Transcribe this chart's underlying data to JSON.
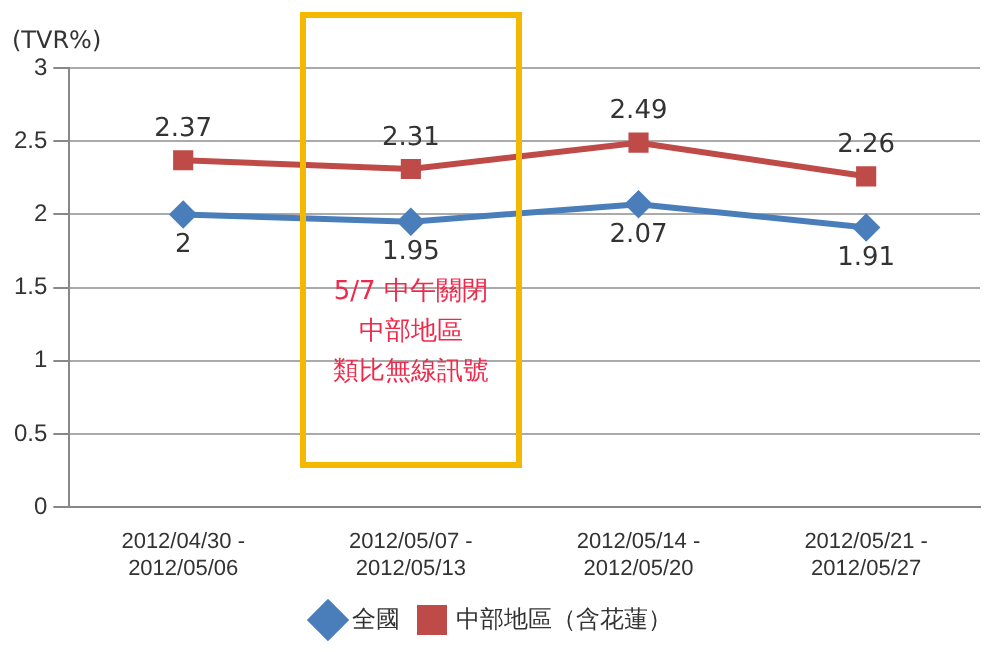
{
  "chart_data": {
    "type": "line",
    "ylabel": "(TVR%)",
    "categories": [
      "2012/04/30 - 2012/05/06",
      "2012/05/07 - 2012/05/13",
      "2012/05/14 - 2012/05/20",
      "2012/05/21 - 2012/05/27"
    ],
    "series": [
      {
        "name": "全國",
        "color": "#4a7ebb",
        "marker": "diamond",
        "values": [
          2,
          1.95,
          2.07,
          1.91
        ]
      },
      {
        "name": "中部地區（含花蓮）",
        "color": "#be4b48",
        "marker": "square",
        "values": [
          2.37,
          2.31,
          2.49,
          2.26
        ]
      }
    ],
    "ylim": [
      0,
      3
    ],
    "yticks": [
      0,
      0.5,
      1,
      1.5,
      2,
      2.5,
      3
    ],
    "grid": "y",
    "legend": "bottom",
    "data_labels": true,
    "annotations": [
      "5/7 中午關閉",
      "中部地區",
      "類比無線訊號"
    ]
  }
}
